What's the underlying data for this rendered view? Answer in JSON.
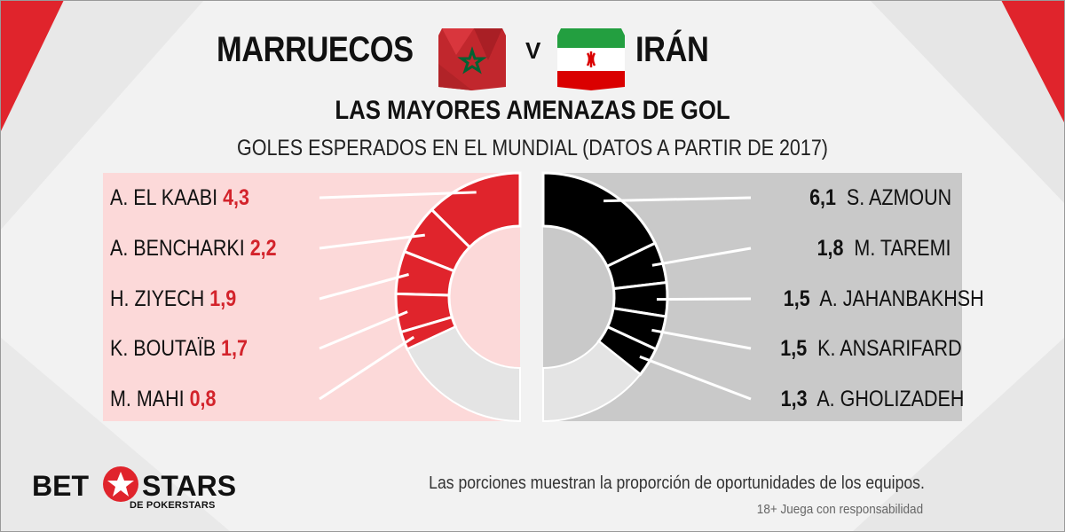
{
  "header": {
    "team_left": "MARRUECOS",
    "vs": "V",
    "team_right": "IRÁN",
    "title": "LAS MAYORES AMENAZAS DE GOL",
    "subtitle": "GOLES ESPERADOS EN EL MUNDIAL (DATOS A PARTIR DE 2017)"
  },
  "colors": {
    "morocco": "#e0242c",
    "iran": "#000000",
    "empty": "#e4e4e4",
    "left_panel": "#fcd9d9",
    "right_panel": "#c9c9c9"
  },
  "chart_data": {
    "type": "donut",
    "unit": "Goles esperados",
    "series": [
      {
        "name": "MARRUECOS",
        "side": "left",
        "players": [
          {
            "name": "A. EL KAABI",
            "value": 4.3,
            "label": "4,3"
          },
          {
            "name": "A. BENCHARKI",
            "value": 2.2,
            "label": "2,2"
          },
          {
            "name": "H. ZIYECH",
            "value": 1.9,
            "label": "1,9"
          },
          {
            "name": "K. BOUTAÏB",
            "value": 1.7,
            "label": "1,7"
          },
          {
            "name": "M. MAHI",
            "value": 0.8,
            "label": "0,8"
          }
        ]
      },
      {
        "name": "IRÁN",
        "side": "right",
        "players": [
          {
            "name": "S. AZMOUN",
            "value": 6.1,
            "label": "6,1"
          },
          {
            "name": "M. TAREMI",
            "value": 1.8,
            "label": "1,8"
          },
          {
            "name": "A. JAHANBAKHSH",
            "value": 1.5,
            "label": "1,5"
          },
          {
            "name": "K. ANSARIFARD",
            "value": 1.5,
            "label": "1,5"
          },
          {
            "name": "A. GHOLIZADEH",
            "value": 1.3,
            "label": "1,3"
          }
        ]
      }
    ]
  },
  "footer": {
    "note": "Las porciones muestran la proporción de oportunidades de los equipos.",
    "disclaimer": "18+ Juega con responsabilidad",
    "logo_bet": "BET",
    "logo_stars": "STARS",
    "logo_sub": "DE POKERSTARS"
  }
}
